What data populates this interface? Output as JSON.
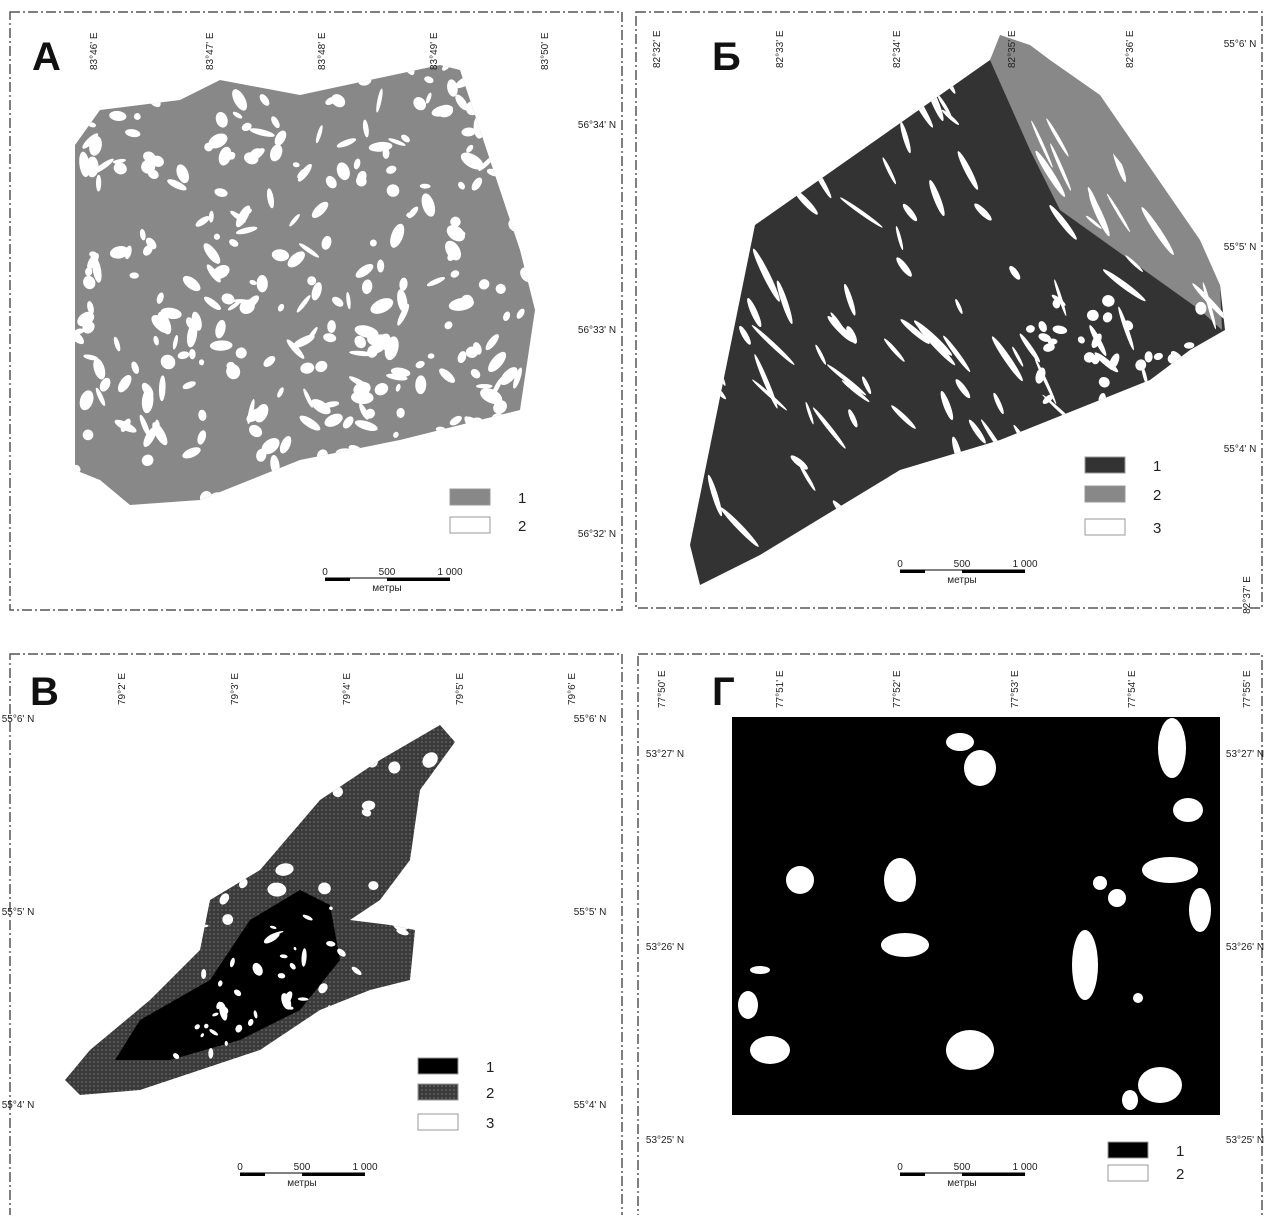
{
  "panels": [
    {
      "label": "А",
      "lon_labels": [
        "83°46' E",
        "83°47' E",
        "83°48' E",
        "83°49' E",
        "83°50' E"
      ],
      "lat_labels": [
        "56°34' N",
        "56°33' N",
        "56°32' N"
      ],
      "legend": [
        "1",
        "2"
      ],
      "scale": {
        "ticks": [
          "0",
          "500",
          "1 000"
        ],
        "unit": "метры"
      }
    },
    {
      "label": "Б",
      "lon_labels": [
        "82°32' E",
        "82°33' E",
        "82°34' E",
        "82°35' E",
        "82°36' E"
      ],
      "lat_labels": [
        "55°6' N",
        "55°5' N",
        "55°4' N"
      ],
      "corner_label": "82°37' E",
      "legend": [
        "1",
        "2",
        "3"
      ],
      "scale": {
        "ticks": [
          "0",
          "500",
          "1 000"
        ],
        "unit": "метры"
      }
    },
    {
      "label": "В",
      "lon_labels": [
        "79°2' E",
        "79°3' E",
        "79°4' E",
        "79°5' E",
        "79°6' E"
      ],
      "lat_labels": [
        "55°6' N",
        "55°5' N",
        "55°4' N"
      ],
      "legend": [
        "1",
        "2",
        "3"
      ],
      "scale": {
        "ticks": [
          "0",
          "500",
          "1 000"
        ],
        "unit": "метры"
      }
    },
    {
      "label": "Г",
      "lon_labels": [
        "77°50' E",
        "77°51' E",
        "77°52' E",
        "77°53' E",
        "77°54' E",
        "77°55' E"
      ],
      "lat_labels": [
        "53°27' N",
        "53°26' N",
        "53°25' N"
      ],
      "legend": [
        "1",
        "2"
      ],
      "scale": {
        "ticks": [
          "0",
          "500",
          "1 000"
        ],
        "unit": "метры"
      }
    }
  ]
}
